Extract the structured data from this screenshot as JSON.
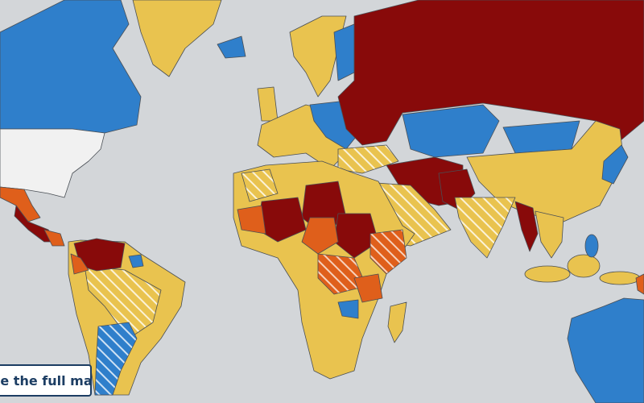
{
  "button": {
    "label": "See the full map"
  }
}
